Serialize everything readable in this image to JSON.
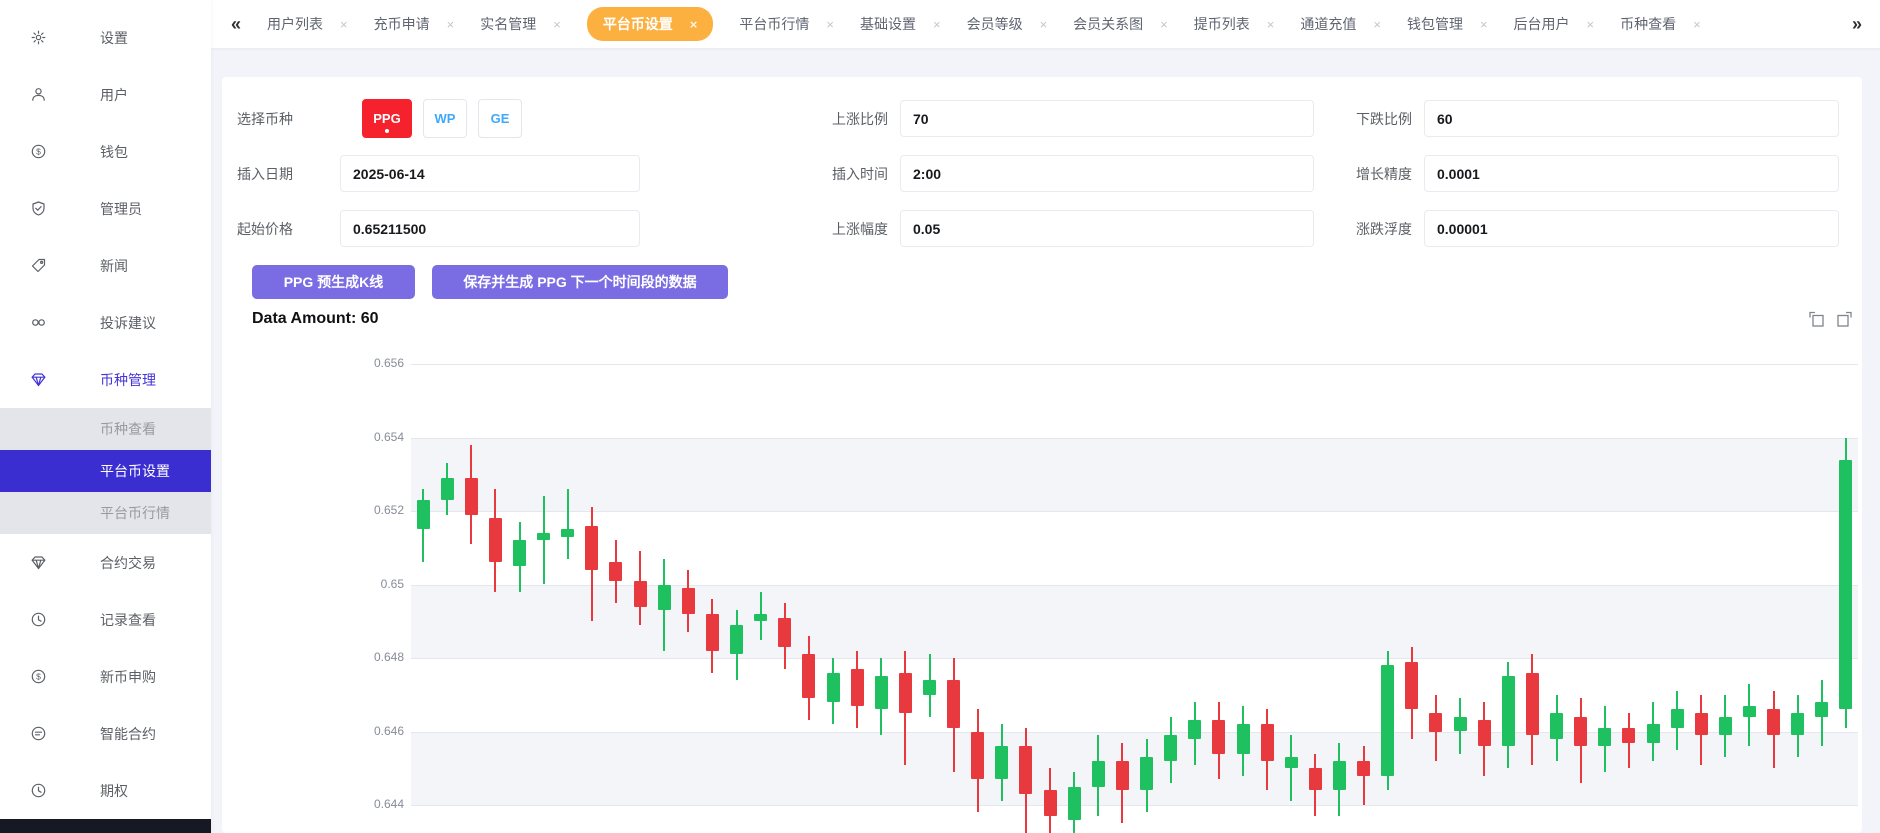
{
  "sidebar": {
    "items": [
      {
        "label": "设置",
        "icon": "gear-icon"
      },
      {
        "label": "用户",
        "icon": "user-icon"
      },
      {
        "label": "钱包",
        "icon": "wallet-icon"
      },
      {
        "label": "管理员",
        "icon": "admin-shield-icon"
      },
      {
        "label": "新闻",
        "icon": "news-tag-icon"
      },
      {
        "label": "投诉建议",
        "icon": "feedback-icon"
      },
      {
        "label": "币种管理",
        "icon": "coin-manage-icon",
        "active": true,
        "children": [
          {
            "label": "币种查看"
          },
          {
            "label": "平台币设置",
            "active": true
          },
          {
            "label": "平台币行情"
          }
        ]
      },
      {
        "label": "合约交易",
        "icon": "contract-icon"
      },
      {
        "label": "记录查看",
        "icon": "records-icon"
      },
      {
        "label": "新币申购",
        "icon": "new-coin-icon"
      },
      {
        "label": "智能合约",
        "icon": "smart-contract-icon"
      },
      {
        "label": "期权",
        "icon": "options-icon"
      }
    ]
  },
  "tabbar": {
    "scroll_left": "«",
    "scroll_right": "»",
    "close_glyph": "×",
    "active_color": "#fbb040",
    "tabs": [
      {
        "label": "用户列表"
      },
      {
        "label": "充币申请"
      },
      {
        "label": "实名管理"
      },
      {
        "label": "平台币设置",
        "active": true
      },
      {
        "label": "平台币行情"
      },
      {
        "label": "基础设置"
      },
      {
        "label": "会员等级"
      },
      {
        "label": "会员关系图"
      },
      {
        "label": "提币列表"
      },
      {
        "label": "通道充值"
      },
      {
        "label": "钱包管理"
      },
      {
        "label": "后台用户"
      },
      {
        "label": "币种查看"
      }
    ]
  },
  "form": {
    "rows": [
      {
        "fields": [
          {
            "type": "coin-select",
            "label": "选择币种",
            "options": [
              {
                "label": "PPG",
                "selected": true,
                "color": "#f5222d"
              },
              {
                "label": "WP"
              },
              {
                "label": "GE"
              }
            ]
          },
          {
            "type": "input",
            "label": "上涨比例",
            "value": "70"
          },
          {
            "type": "input",
            "label": "下跌比例",
            "value": "60"
          }
        ]
      },
      {
        "fields": [
          {
            "type": "input",
            "label": "插入日期",
            "value": "2025-06-14"
          },
          {
            "type": "input",
            "label": "插入时间",
            "value": "2:00"
          },
          {
            "type": "input",
            "label": "增长精度",
            "value": "0.0001"
          }
        ]
      },
      {
        "fields": [
          {
            "type": "input",
            "label": "起始价格",
            "value": "0.65211500"
          },
          {
            "type": "input",
            "label": "上涨幅度",
            "value": "0.05"
          },
          {
            "type": "input",
            "label": "涨跌浮度",
            "value": "0.00001"
          }
        ]
      }
    ]
  },
  "actions": {
    "pregenerate_label": "PPG 预生成K线",
    "save_next_label": "保存并生成 PPG 下一个时间段的数据",
    "button_color": "#7a6ce2"
  },
  "chart_header": {
    "data_amount_label": "Data Amount: 60",
    "toolbox_icons": [
      "datazoom-icon",
      "restore-icon"
    ]
  },
  "chart_data": {
    "type": "candlestick",
    "title": "",
    "xlabel": "",
    "ylabel": "",
    "x_axis": {
      "count": 60,
      "labels_visible": false
    },
    "y_axis": {
      "ticks": [
        0.656,
        0.654,
        0.652,
        0.65,
        0.648,
        0.646,
        0.644
      ],
      "interval": 0.002,
      "visible_range": [
        0.6435,
        0.656
      ]
    },
    "grid": true,
    "legend": "none",
    "colors": {
      "up": "#1ec05f",
      "down": "#e8393f",
      "grid_line": "#e4e7ed",
      "band": "#f3f5f8"
    },
    "candles_format": [
      "open",
      "close",
      "low",
      "high"
    ],
    "candles": [
      [
        0.6515,
        0.6523,
        0.6506,
        0.6526
      ],
      [
        0.6523,
        0.6529,
        0.6519,
        0.6533
      ],
      [
        0.6529,
        0.6519,
        0.6511,
        0.6538
      ],
      [
        0.6518,
        0.6506,
        0.6498,
        0.6526
      ],
      [
        0.6505,
        0.6512,
        0.6498,
        0.6517
      ],
      [
        0.6512,
        0.6514,
        0.65,
        0.6524
      ],
      [
        0.6513,
        0.6515,
        0.6507,
        0.6526
      ],
      [
        0.6516,
        0.6504,
        0.649,
        0.6521
      ],
      [
        0.6506,
        0.6501,
        0.6495,
        0.6512
      ],
      [
        0.6501,
        0.6494,
        0.6489,
        0.6509
      ],
      [
        0.6493,
        0.65,
        0.6482,
        0.6507
      ],
      [
        0.6499,
        0.6492,
        0.6487,
        0.6504
      ],
      [
        0.6492,
        0.6482,
        0.6476,
        0.6496
      ],
      [
        0.6481,
        0.6489,
        0.6474,
        0.6493
      ],
      [
        0.649,
        0.6492,
        0.6485,
        0.6498
      ],
      [
        0.6491,
        0.6483,
        0.6477,
        0.6495
      ],
      [
        0.6481,
        0.6469,
        0.6463,
        0.6486
      ],
      [
        0.6468,
        0.6476,
        0.6462,
        0.648
      ],
      [
        0.6477,
        0.6467,
        0.6461,
        0.6482
      ],
      [
        0.6466,
        0.6475,
        0.6459,
        0.648
      ],
      [
        0.6476,
        0.6465,
        0.6451,
        0.6482
      ],
      [
        0.647,
        0.6474,
        0.6464,
        0.6481
      ],
      [
        0.6474,
        0.6461,
        0.6449,
        0.648
      ],
      [
        0.646,
        0.6447,
        0.6438,
        0.6466
      ],
      [
        0.6447,
        0.6456,
        0.6441,
        0.6462
      ],
      [
        0.6456,
        0.6443,
        0.6428,
        0.6461
      ],
      [
        0.6444,
        0.6437,
        0.6425,
        0.645
      ],
      [
        0.6436,
        0.6445,
        0.6422,
        0.6449
      ],
      [
        0.6445,
        0.6452,
        0.6437,
        0.6459
      ],
      [
        0.6452,
        0.6444,
        0.6435,
        0.6457
      ],
      [
        0.6444,
        0.6453,
        0.6438,
        0.6458
      ],
      [
        0.6452,
        0.6459,
        0.6446,
        0.6464
      ],
      [
        0.6458,
        0.6463,
        0.6451,
        0.6468
      ],
      [
        0.6463,
        0.6454,
        0.6447,
        0.6468
      ],
      [
        0.6454,
        0.6462,
        0.6448,
        0.6467
      ],
      [
        0.6462,
        0.6452,
        0.6444,
        0.6466
      ],
      [
        0.645,
        0.6453,
        0.6441,
        0.6459
      ],
      [
        0.645,
        0.6444,
        0.6437,
        0.6454
      ],
      [
        0.6444,
        0.6452,
        0.6437,
        0.6457
      ],
      [
        0.6452,
        0.6448,
        0.644,
        0.6456
      ],
      [
        0.6448,
        0.6478,
        0.6444,
        0.6482
      ],
      [
        0.6479,
        0.6466,
        0.6458,
        0.6483
      ],
      [
        0.6465,
        0.646,
        0.6452,
        0.647
      ],
      [
        0.646,
        0.6464,
        0.6454,
        0.6469
      ],
      [
        0.6463,
        0.6456,
        0.6448,
        0.6468
      ],
      [
        0.6456,
        0.6475,
        0.645,
        0.6479
      ],
      [
        0.6476,
        0.6459,
        0.6451,
        0.6481
      ],
      [
        0.6458,
        0.6465,
        0.6452,
        0.647
      ],
      [
        0.6464,
        0.6456,
        0.6446,
        0.6469
      ],
      [
        0.6456,
        0.6461,
        0.6449,
        0.6467
      ],
      [
        0.6461,
        0.6457,
        0.645,
        0.6465
      ],
      [
        0.6457,
        0.6462,
        0.6452,
        0.6468
      ],
      [
        0.6461,
        0.6466,
        0.6455,
        0.6471
      ],
      [
        0.6465,
        0.6459,
        0.6451,
        0.647
      ],
      [
        0.6459,
        0.6464,
        0.6453,
        0.647
      ],
      [
        0.6464,
        0.6467,
        0.6456,
        0.6473
      ],
      [
        0.6466,
        0.6459,
        0.645,
        0.6471
      ],
      [
        0.6459,
        0.6465,
        0.6453,
        0.647
      ],
      [
        0.6464,
        0.6468,
        0.6456,
        0.6474
      ],
      [
        0.6466,
        0.6534,
        0.6461,
        0.654
      ]
    ]
  }
}
